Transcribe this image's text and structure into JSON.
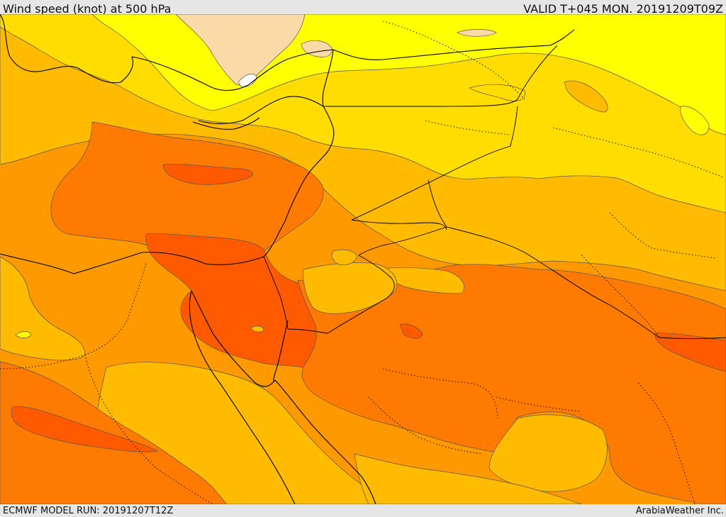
{
  "header": {
    "title": "Wind speed (knot) at 500 hPa",
    "valid": "VALID T+045 MON. 20191209T09Z"
  },
  "footer": {
    "run": "ECMWF MODEL RUN: 20191207T12Z",
    "credit": "ArabiaWeather Inc."
  },
  "map": {
    "product": "wind-speed-500hpa",
    "colors": {
      "lightest": "#fbdaa8",
      "yellow": "#ffff00",
      "gold": "#ffdd00",
      "amber": "#ffbb00",
      "orange": "#ff9900",
      "dark_orange": "#ff7a00",
      "red_orange": "#ff5a00",
      "border": "#000000",
      "contour": "#555555"
    }
  }
}
